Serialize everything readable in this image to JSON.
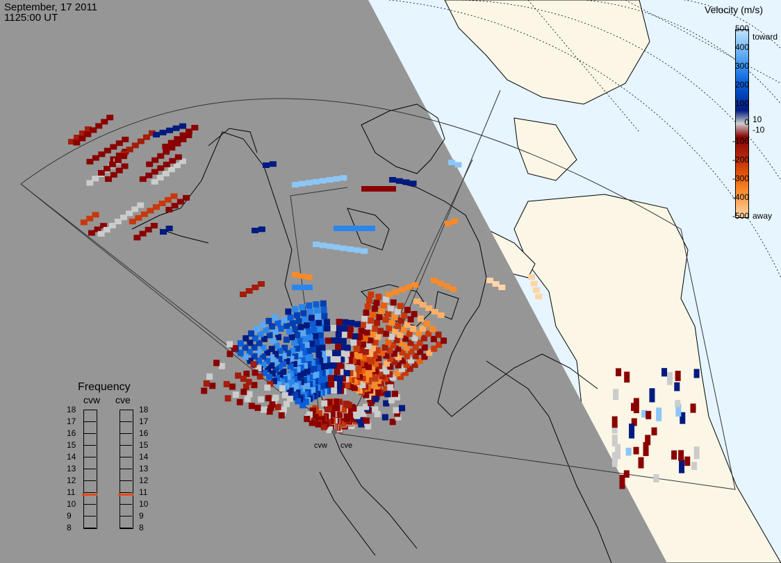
{
  "header": {
    "date": "September, 17 2011",
    "time": "1125:00 UT"
  },
  "colorbar": {
    "title": "Velocity (m/s)",
    "toward_label": "toward",
    "away_label": "away",
    "ticks_left": [
      "500",
      "400",
      "300",
      "200",
      "100",
      "0",
      "-100",
      "-200",
      "-300",
      "-400",
      "-500"
    ],
    "ticks_right_positive": "10",
    "ticks_right_negative": "-10",
    "colors": [
      "#fcd6a8",
      "#fcb06a",
      "#f88a2a",
      "#e8600c",
      "#c8380a",
      "#a41c0a",
      "#8a0000",
      "#cccccc",
      "#001a80",
      "#003fb0",
      "#0b5ed8",
      "#2b86ea",
      "#5aa8f2",
      "#8cc6f6",
      "#bfe2fb"
    ]
  },
  "frequency": {
    "title": "Frequency",
    "radars": [
      "cvw",
      "cve"
    ],
    "ticks": [
      "18",
      "17",
      "16",
      "15",
      "14",
      "13",
      "12",
      "11",
      "10",
      "9",
      "8"
    ],
    "cvw_mhz": 10.8,
    "cve_mhz": 10.8,
    "marker_color": "#e84a1a"
  },
  "radars": [
    "cvw",
    "cve"
  ],
  "map_colors": {
    "night": "#969696",
    "ocean_day": "#e6f5ff",
    "land_day": "#fbf6e6"
  }
}
